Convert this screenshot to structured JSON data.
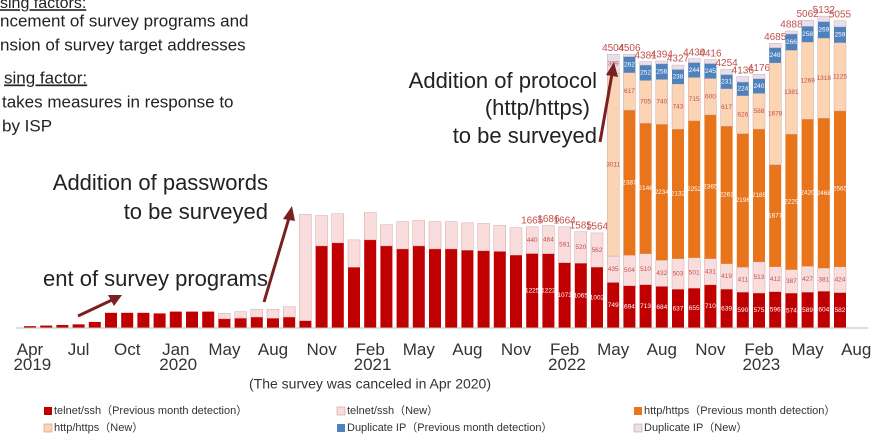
{
  "chart_data": {
    "type": "stacked_bar",
    "annotations": [
      "sing factors:",
      "ncement of survey programs and",
      "nsion of survey target addresses",
      "sing factor:",
      "takes measures in response to",
      "by ISP",
      "Addition of  protocol",
      "(http/https)",
      "to be surveyed",
      "Addition of passwords",
      "to be surveyed",
      "ent of survey programs",
      "(The survey was canceled in Apr 2020)"
    ],
    "categories": [
      "Apr 2019",
      null,
      null,
      "Jul",
      null,
      null,
      "Oct",
      null,
      null,
      "Jan 2020",
      null,
      null,
      "May",
      null,
      null,
      "Aug",
      null,
      null,
      "Nov",
      null,
      null,
      "Feb 2021",
      null,
      null,
      "May",
      null,
      null,
      "Aug",
      null,
      null,
      "Nov",
      null,
      null,
      "Feb 2022",
      null,
      null,
      "May",
      null,
      null,
      "Aug",
      null,
      null,
      "Nov",
      null,
      null,
      "Feb 2023",
      null,
      null,
      "May",
      null,
      null,
      "Aug"
    ],
    "ylim": [
      0,
      5200
    ],
    "totals": [
      null,
      null,
      null,
      null,
      null,
      null,
      null,
      null,
      null,
      null,
      null,
      null,
      null,
      null,
      null,
      null,
      null,
      null,
      null,
      null,
      null,
      null,
      null,
      null,
      null,
      null,
      null,
      null,
      null,
      null,
      null,
      1665,
      1686,
      1664,
      1585,
      1564,
      4504,
      4506,
      4381,
      4394,
      4327,
      4430,
      4416,
      4254,
      4136,
      4176,
      4685,
      4888,
      5062,
      5132,
      5055,
      null
    ],
    "series": [
      {
        "name": "telnet/ssh（Previous month detection）",
        "color": "#c00000",
        "values": [
          30,
          40,
          50,
          60,
          100,
          250,
          250,
          250,
          240,
          270,
          270,
          270,
          150,
          160,
          180,
          160,
          180,
          120,
          1350,
          1400,
          1000,
          1450,
          1350,
          1300,
          1350,
          1300,
          1300,
          1280,
          1270,
          1260,
          1200,
          1225,
          1222,
          1073,
          1065,
          1002,
          749,
          694,
          713,
          684,
          637,
          655,
          710,
          639,
          590,
          575,
          596,
          574,
          589,
          604,
          582,
          null
        ]
      },
      {
        "name": "telnet/ssh（New）",
        "color": "#f9dcdc",
        "values": [
          null,
          null,
          null,
          null,
          null,
          null,
          null,
          null,
          null,
          null,
          null,
          null,
          90,
          110,
          130,
          150,
          170,
          1750,
          500,
          480,
          450,
          450,
          350,
          450,
          420,
          450,
          450,
          450,
          450,
          430,
          450,
          440,
          464,
          591,
          520,
          562,
          435,
          504,
          510,
          432,
          503,
          501,
          431,
          419,
          411,
          513,
          412,
          387,
          427,
          381,
          424,
          null
        ]
      },
      {
        "name": "http/https（Previous month detection）",
        "color": "#e8741c",
        "values": [
          null,
          null,
          null,
          null,
          null,
          null,
          null,
          null,
          null,
          null,
          null,
          null,
          null,
          null,
          null,
          null,
          null,
          null,
          null,
          null,
          null,
          null,
          null,
          null,
          null,
          null,
          null,
          null,
          null,
          null,
          null,
          null,
          null,
          null,
          null,
          null,
          null,
          2387,
          2146,
          2234,
          2132,
          2252,
          2365,
          2263,
          2196,
          2185,
          1677,
          2229,
          2420,
          2468,
          2565,
          null
        ]
      },
      {
        "name": "http/https（New）",
        "color": "#fbd4b4",
        "values": [
          null,
          null,
          null,
          null,
          null,
          null,
          null,
          null,
          null,
          null,
          null,
          null,
          null,
          null,
          null,
          null,
          null,
          null,
          null,
          null,
          null,
          null,
          null,
          null,
          null,
          null,
          null,
          null,
          null,
          null,
          null,
          null,
          null,
          null,
          null,
          null,
          3011,
          617,
          705,
          740,
          743,
          715,
          600,
          617,
          626,
          588,
          1678,
          1381,
          1269,
          1318,
          1125,
          null
        ]
      },
      {
        "name": "Duplicate IP（Previous month detection）",
        "color": "#4f81bd",
        "values": [
          null,
          null,
          null,
          null,
          null,
          null,
          null,
          null,
          null,
          null,
          null,
          null,
          null,
          null,
          null,
          null,
          null,
          null,
          null,
          null,
          null,
          null,
          null,
          null,
          null,
          null,
          null,
          null,
          null,
          null,
          null,
          null,
          null,
          null,
          null,
          null,
          null,
          262,
          252,
          256,
          238,
          244,
          245,
          231,
          224,
          240,
          248,
          266,
          258,
          269,
          259,
          null
        ]
      },
      {
        "name": "Duplicate IP（New）",
        "color": "#e6e0ec",
        "values": [
          null,
          null,
          null,
          null,
          null,
          null,
          null,
          null,
          null,
          null,
          null,
          null,
          null,
          null,
          null,
          null,
          null,
          null,
          null,
          null,
          null,
          null,
          null,
          null,
          null,
          null,
          null,
          null,
          null,
          null,
          null,
          null,
          null,
          null,
          null,
          null,
          309,
          42,
          55,
          48,
          74,
          63,
          65,
          85,
          89,
          75,
          74,
          51,
          99,
          92,
          100,
          null
        ]
      }
    ]
  }
}
